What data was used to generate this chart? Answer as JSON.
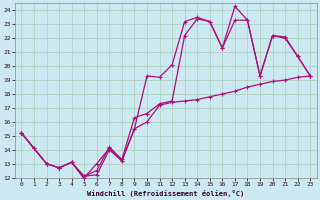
{
  "title": "",
  "xlabel": "Windchill (Refroidissement éolien,°C)",
  "bg_color": "#cce8f0",
  "grid_color": "#aaccbb",
  "line_color": "#aa1177",
  "xlim": [
    -0.5,
    23.5
  ],
  "ylim": [
    12,
    24.5
  ],
  "xticks": [
    0,
    1,
    2,
    3,
    4,
    5,
    6,
    7,
    8,
    9,
    10,
    11,
    12,
    13,
    14,
    15,
    16,
    17,
    18,
    19,
    20,
    21,
    22,
    23
  ],
  "yticks": [
    12,
    13,
    14,
    15,
    16,
    17,
    18,
    19,
    20,
    21,
    22,
    23,
    24
  ],
  "line1_x": [
    0,
    1,
    2,
    3,
    4,
    5,
    5,
    6,
    7,
    8,
    9,
    10,
    11,
    12,
    13,
    14,
    15,
    16,
    17,
    18,
    19,
    20,
    21,
    22,
    23
  ],
  "line1_y": [
    15.2,
    14.1,
    13.0,
    12.7,
    13.1,
    11.9,
    12.1,
    12.2,
    14.0,
    13.2,
    15.5,
    19.3,
    19.2,
    20.1,
    23.2,
    23.5,
    23.2,
    21.3,
    24.3,
    23.3,
    19.3,
    22.2,
    22.1,
    20.7,
    19.3
  ],
  "line2_x": [
    0,
    2,
    3,
    4,
    5,
    6,
    7,
    8,
    9,
    10,
    11,
    12,
    13,
    14,
    15,
    16,
    17,
    18,
    19,
    20,
    21,
    22,
    23
  ],
  "line2_y": [
    15.2,
    13.0,
    12.7,
    13.1,
    12.1,
    12.5,
    14.2,
    13.3,
    16.3,
    16.6,
    17.3,
    17.5,
    22.2,
    23.4,
    23.2,
    21.3,
    23.3,
    23.3,
    19.3,
    22.2,
    22.0,
    20.7,
    19.3
  ],
  "line3_x": [
    0,
    1,
    2,
    3,
    4,
    5,
    6,
    7,
    8,
    9,
    10,
    11,
    12,
    13,
    14,
    15,
    16,
    17,
    18,
    19,
    20,
    21,
    22,
    23
  ],
  "line3_y": [
    15.2,
    14.1,
    13.0,
    12.7,
    13.1,
    12.0,
    13.0,
    14.1,
    13.2,
    15.5,
    16.0,
    17.2,
    17.4,
    17.5,
    17.6,
    17.8,
    18.0,
    18.2,
    18.5,
    18.7,
    18.9,
    19.0,
    19.2,
    19.3
  ]
}
